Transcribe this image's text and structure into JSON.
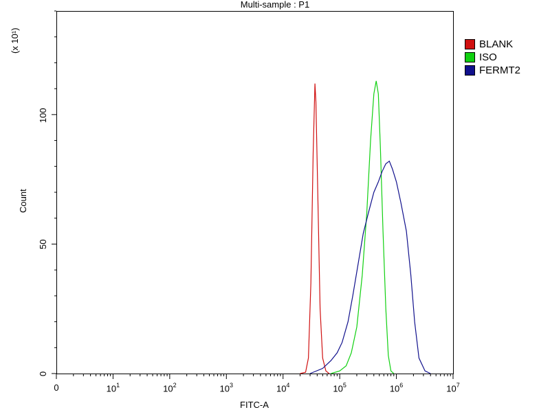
{
  "chart_data": {
    "type": "line",
    "title": "Multi-sample : P1",
    "xlabel": "FITC-A",
    "ylabel": "Count",
    "y_scale_label": "(x 10¹)",
    "xscale": "log",
    "xlim": [
      1,
      10000000
    ],
    "ylim": [
      0,
      140
    ],
    "xticks": [
      {
        "value": 1,
        "base": "0",
        "exp": ""
      },
      {
        "value": 10,
        "base": "10",
        "exp": "1"
      },
      {
        "value": 100,
        "base": "10",
        "exp": "2"
      },
      {
        "value": 1000,
        "base": "10",
        "exp": "3"
      },
      {
        "value": 10000,
        "base": "10",
        "exp": "4"
      },
      {
        "value": 100000,
        "base": "10",
        "exp": "5"
      },
      {
        "value": 1000000,
        "base": "10",
        "exp": "6"
      },
      {
        "value": 10000000,
        "base": "10",
        "exp": "7"
      }
    ],
    "yticks": [
      0,
      50,
      100
    ],
    "grid": false,
    "legend_position": "right",
    "series": [
      {
        "name": "BLANK",
        "color": "#d01010",
        "points": [
          [
            20000,
            0
          ],
          [
            25000,
            0.5
          ],
          [
            28000,
            6
          ],
          [
            31000,
            35
          ],
          [
            34000,
            85
          ],
          [
            36500,
            112
          ],
          [
            38000,
            105
          ],
          [
            41000,
            70
          ],
          [
            45000,
            25
          ],
          [
            50000,
            6
          ],
          [
            57000,
            1
          ],
          [
            65000,
            0
          ]
        ]
      },
      {
        "name": "ISO",
        "color": "#10d010",
        "points": [
          [
            70000,
            0
          ],
          [
            100000,
            1
          ],
          [
            130000,
            3
          ],
          [
            160000,
            8
          ],
          [
            200000,
            18
          ],
          [
            250000,
            38
          ],
          [
            300000,
            62
          ],
          [
            350000,
            90
          ],
          [
            400000,
            108
          ],
          [
            440000,
            113
          ],
          [
            480000,
            108
          ],
          [
            520000,
            88
          ],
          [
            580000,
            55
          ],
          [
            650000,
            25
          ],
          [
            720000,
            7
          ],
          [
            800000,
            1
          ],
          [
            900000,
            0
          ]
        ]
      },
      {
        "name": "FERMT2",
        "color": "#10108c",
        "points": [
          [
            30000,
            0
          ],
          [
            50000,
            2
          ],
          [
            70000,
            5
          ],
          [
            90000,
            8
          ],
          [
            110000,
            12
          ],
          [
            140000,
            20
          ],
          [
            170000,
            30
          ],
          [
            210000,
            42
          ],
          [
            260000,
            54
          ],
          [
            320000,
            62
          ],
          [
            400000,
            70
          ],
          [
            480000,
            74
          ],
          [
            560000,
            78
          ],
          [
            650000,
            81
          ],
          [
            750000,
            82
          ],
          [
            850000,
            79
          ],
          [
            1000000,
            74
          ],
          [
            1200000,
            66
          ],
          [
            1500000,
            55
          ],
          [
            1800000,
            38
          ],
          [
            2100000,
            20
          ],
          [
            2500000,
            6
          ],
          [
            3200000,
            1
          ],
          [
            4000000,
            0
          ]
        ]
      }
    ]
  }
}
